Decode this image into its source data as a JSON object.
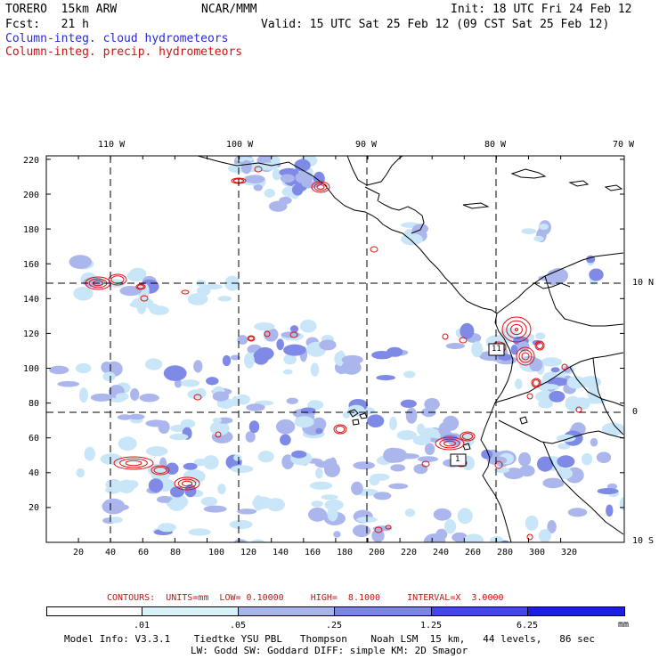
{
  "header": {
    "model": "TORERO  15km ARW",
    "org": "NCAR/MMM",
    "init": "Init: 18 UTC Fri 24 Feb 12",
    "fcst": "Fcst:   21 h",
    "valid": "Valid: 15 UTC Sat 25 Feb 12 (09 CST Sat 25 Feb 12)",
    "cloud_label": "Column-integ. cloud hydrometeors",
    "precip_label": "Column-integ. precip. hydrometeors"
  },
  "map": {
    "lon_labels_top": [
      "110 W",
      "100 W",
      "90 W",
      "80 W",
      "70 W"
    ],
    "lat_labels_right": [
      "10 N",
      "0",
      "10 S"
    ],
    "y_ticks": [
      "220",
      "200",
      "180",
      "160",
      "140",
      "120",
      "100",
      "80",
      "60",
      "40",
      "20"
    ],
    "x_ticks": [
      "20",
      "40",
      "60",
      "80",
      "100",
      "120",
      "140",
      "160",
      "180",
      "200",
      "220",
      "240",
      "260",
      "280",
      "300",
      "320"
    ],
    "box_labels": [
      "11",
      "1"
    ],
    "colors": {
      "cloud_light": "#c8e6f7",
      "cloud_mid": "#aab6ec",
      "cloud_dark": "#7f8ae6",
      "precip": "#dd1010",
      "coast": "#000000"
    }
  },
  "contours_info": {
    "text": "CONTOURS:  UNITS=mm  LOW= 0.10000     HIGH=  8.1000     INTERVAL=X  3.0000"
  },
  "colorbar": {
    "labels": [
      ".01",
      ".05",
      ".25",
      "1.25",
      "6.25"
    ],
    "unit": "mm",
    "colors": [
      "#ffffff",
      "#d8f2f8",
      "#aab4ec",
      "#7c84e6",
      "#4646e4",
      "#1e1ee0"
    ]
  },
  "footer": {
    "line1": "Model Info: V3.3.1    Tiedtke YSU PBL   Thompson    Noah LSM  15 km,   44 levels,   86 sec",
    "line2": "LW: Godd SW: Goddard DIFF: simple KM: 2D Smagor"
  }
}
